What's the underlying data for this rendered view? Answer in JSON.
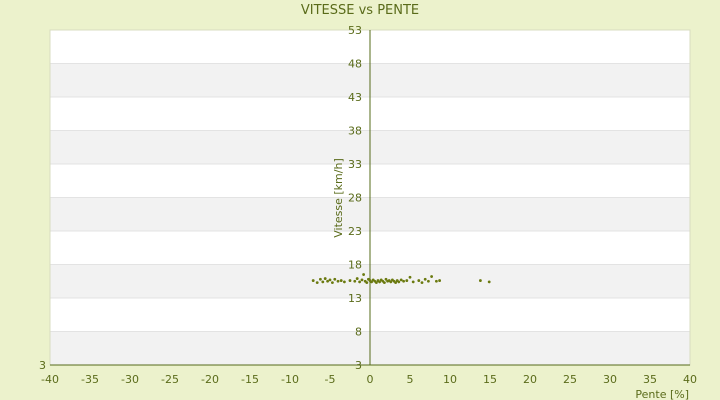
{
  "chart_data": {
    "type": "scatter",
    "title": "VITESSE vs PENTE",
    "xlabel": "Pente [%]",
    "ylabel": "Vitesse [km/h]",
    "xlim": [
      -40,
      40
    ],
    "ylim": [
      3,
      53
    ],
    "xticks": [
      -40,
      -35,
      -30,
      -25,
      -20,
      -15,
      -10,
      -5,
      0,
      5,
      10,
      15,
      20,
      25,
      30,
      35,
      40
    ],
    "yticks": [
      3,
      8,
      13,
      18,
      23,
      28,
      33,
      38,
      43,
      48,
      53
    ],
    "yticks_left": [
      3
    ],
    "grid": "horizontal bands",
    "colors": {
      "background": "#ecf2cc",
      "plot": "#ffffff",
      "band": "#f2f2f2",
      "point": "#6b7a10",
      "axis": "#556b1a",
      "text": "#5a6b1a"
    },
    "points": [
      [
        -7.1,
        15.6
      ],
      [
        -6.6,
        15.3
      ],
      [
        -6.2,
        15.8
      ],
      [
        -5.9,
        15.4
      ],
      [
        -5.6,
        15.9
      ],
      [
        -5.3,
        15.5
      ],
      [
        -5.0,
        15.7
      ],
      [
        -4.7,
        15.3
      ],
      [
        -4.4,
        15.8
      ],
      [
        -4.0,
        15.5
      ],
      [
        -3.6,
        15.6
      ],
      [
        -3.2,
        15.4
      ],
      [
        -2.5,
        15.6
      ],
      [
        -1.9,
        15.5
      ],
      [
        -1.6,
        15.9
      ],
      [
        -1.3,
        15.4
      ],
      [
        -1.0,
        15.7
      ],
      [
        -0.8,
        16.5
      ],
      [
        -0.6,
        15.5
      ],
      [
        -0.4,
        15.3
      ],
      [
        -0.2,
        15.8
      ],
      [
        0.0,
        15.6
      ],
      [
        0.2,
        15.4
      ],
      [
        0.4,
        15.7
      ],
      [
        0.6,
        15.5
      ],
      [
        0.8,
        15.3
      ],
      [
        1.0,
        15.6
      ],
      [
        1.2,
        15.4
      ],
      [
        1.4,
        15.7
      ],
      [
        1.6,
        15.5
      ],
      [
        1.8,
        15.3
      ],
      [
        2.0,
        15.8
      ],
      [
        2.2,
        15.5
      ],
      [
        2.4,
        15.6
      ],
      [
        2.6,
        15.4
      ],
      [
        2.8,
        15.7
      ],
      [
        3.0,
        15.5
      ],
      [
        3.2,
        15.3
      ],
      [
        3.4,
        15.6
      ],
      [
        3.6,
        15.4
      ],
      [
        3.9,
        15.7
      ],
      [
        4.2,
        15.5
      ],
      [
        4.6,
        15.6
      ],
      [
        5.0,
        16.1
      ],
      [
        5.4,
        15.4
      ],
      [
        6.1,
        15.6
      ],
      [
        6.5,
        15.3
      ],
      [
        6.9,
        15.8
      ],
      [
        7.3,
        15.5
      ],
      [
        7.7,
        16.2
      ],
      [
        8.3,
        15.5
      ],
      [
        8.7,
        15.6
      ],
      [
        13.8,
        15.6
      ],
      [
        14.9,
        15.4
      ]
    ]
  }
}
